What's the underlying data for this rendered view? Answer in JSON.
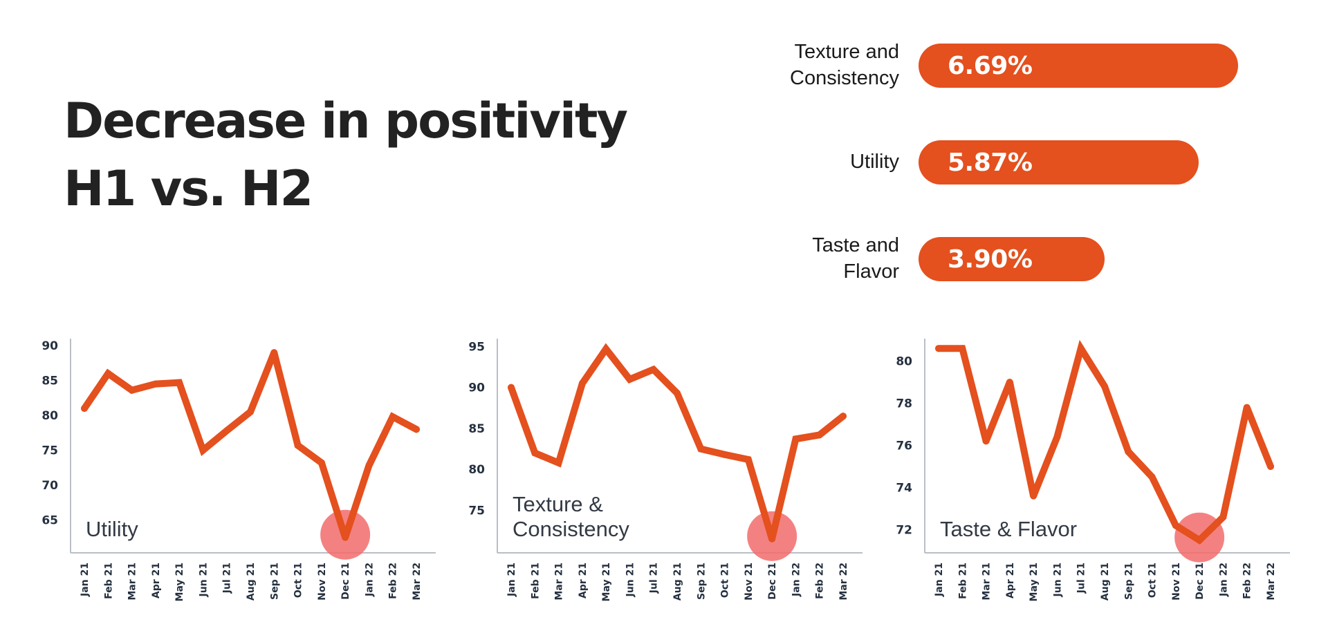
{
  "title": {
    "line1": "Decrease in positivity",
    "line2": "H1 vs. H2"
  },
  "bars": [
    {
      "label_lines": [
        "Texture and",
        "Consistency"
      ],
      "value": 6.69,
      "value_label": "6.69%"
    },
    {
      "label_lines": [
        "Utility"
      ],
      "value": 5.87,
      "value_label": "5.87%"
    },
    {
      "label_lines": [
        "Taste and",
        "Flavor"
      ],
      "value": 3.9,
      "value_label": "3.90%"
    }
  ],
  "colors": {
    "accent": "#e4501e",
    "highlight": "#f26b6b",
    "axis": "#b9bec6",
    "tick_text": "#253040"
  },
  "chart_data": [
    {
      "type": "line",
      "name_lines": [
        "Utility"
      ],
      "x": [
        "Jan 21",
        "Feb 21",
        "Mar 21",
        "Apr 21",
        "May 21",
        "Jun 21",
        "Jul 21",
        "Aug 21",
        "Sep 21",
        "Oct 21",
        "Nov 21",
        "Dec 21",
        "Jan 22",
        "Feb 22",
        "Mar 22"
      ],
      "values": [
        81,
        86,
        83.6,
        84.5,
        84.7,
        75,
        77.8,
        80.5,
        89,
        75.7,
        73.2,
        62.5,
        72.8,
        79.8,
        78
      ],
      "ylim": [
        60.3,
        90.8
      ],
      "yticks": [
        65,
        70,
        75,
        80,
        85,
        90
      ],
      "highlight_index": 11,
      "grid": false
    },
    {
      "type": "line",
      "name_lines": [
        "Texture &",
        "Consistency"
      ],
      "x": [
        "Jan 21",
        "Feb 21",
        "Mar 21",
        "Apr 21",
        "May 21",
        "Jun 21",
        "Jul 21",
        "Aug 21",
        "Sep 21",
        "Oct 21",
        "Nov 21",
        "Dec 21",
        "Jan 22",
        "Feb 22",
        "Mar 22"
      ],
      "values": [
        90,
        82,
        80.8,
        90.5,
        94.7,
        91,
        92.2,
        89.3,
        82.5,
        81.8,
        81.2,
        71.5,
        83.7,
        84.2,
        86.5
      ],
      "ylim": [
        69.8,
        95.8
      ],
      "yticks": [
        75,
        80,
        85,
        90,
        95
      ],
      "highlight_index": 11,
      "grid": false
    },
    {
      "type": "line",
      "name_lines": [
        "Taste & Flavor"
      ],
      "x": [
        "Jan 21",
        "Feb 21",
        "Mar 21",
        "Apr 21",
        "May 21",
        "Jun 21",
        "Jul 21",
        "Aug 21",
        "Sep 21",
        "Oct 21",
        "Nov 21",
        "Dec 21",
        "Jan 22",
        "Feb 22",
        "Mar 22"
      ],
      "values": [
        80.6,
        80.6,
        76.2,
        79,
        73.6,
        76.4,
        80.6,
        78.8,
        75.7,
        74.5,
        72.2,
        71.5,
        72.6,
        77.8,
        75
      ],
      "ylim": [
        70.9,
        81.0
      ],
      "yticks": [
        72,
        74,
        76,
        78,
        80
      ],
      "highlight_index": 11,
      "grid": false
    }
  ]
}
